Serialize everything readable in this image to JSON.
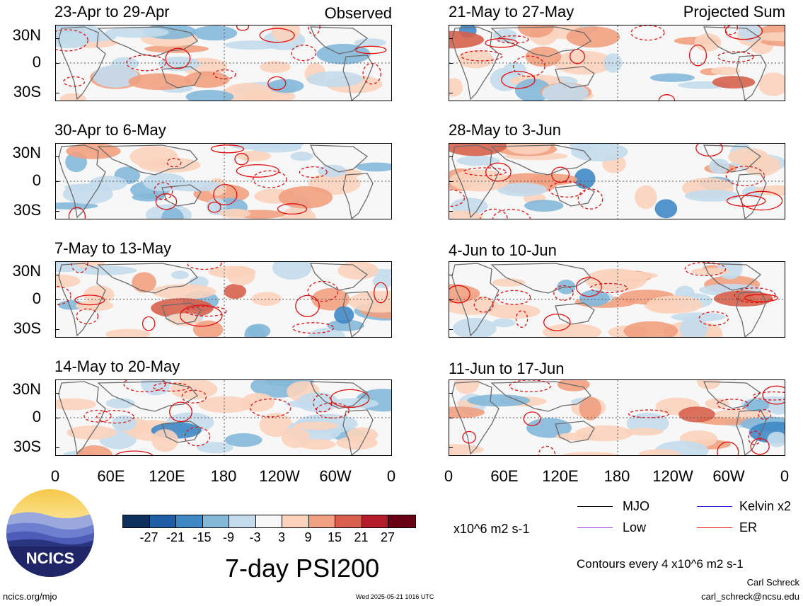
{
  "panels": [
    {
      "column": "observed",
      "period": "23-Apr to 29-Apr",
      "label": "Observed"
    },
    {
      "column": "observed",
      "period": "30-Apr to 6-May",
      "label": ""
    },
    {
      "column": "observed",
      "period": "7-May to 13-May",
      "label": ""
    },
    {
      "column": "observed",
      "period": "14-May to 20-May",
      "label": ""
    },
    {
      "column": "projected",
      "period": "21-May to 27-May",
      "label": "Projected Sum"
    },
    {
      "column": "projected",
      "period": "28-May to 3-Jun",
      "label": ""
    },
    {
      "column": "projected",
      "period": "4-Jun to 10-Jun",
      "label": ""
    },
    {
      "column": "projected",
      "period": "11-Jun to 17-Jun",
      "label": ""
    }
  ],
  "y_ticks": [
    "30N",
    "0",
    "30S"
  ],
  "x_ticks": [
    "0",
    "60E",
    "120E",
    "180",
    "120W",
    "60W",
    "0"
  ],
  "colorbar": {
    "ticks": [
      "-27",
      "-21",
      "-15",
      "-9",
      "-3",
      "3",
      "9",
      "15",
      "21",
      "27"
    ],
    "units": "x10^6 m2 s-1",
    "colors": [
      "#0d2f5c",
      "#1d5fa2",
      "#3f88c5",
      "#84b8d9",
      "#c3dbec",
      "#f7f7f7",
      "#fbd3bd",
      "#f1a07f",
      "#d6604d",
      "#b21c2b",
      "#6a0014"
    ]
  },
  "legend": {
    "items": [
      {
        "label": "MJO",
        "color": "#000000"
      },
      {
        "label": "Kelvin x2",
        "color": "#1f1fe0"
      },
      {
        "label": "Low",
        "color": "#a040e0"
      },
      {
        "label": "ER",
        "color": "#e01010"
      }
    ],
    "contour_note": "Contours every 4 x10^6 m2 s-1"
  },
  "title": "7-day PSI200",
  "logo_text": "NCICS",
  "footer": {
    "url": "ncics.org/mjo",
    "timestamp": "Wed 2025-05-21 1016 UTC",
    "author": "Carl Schreck",
    "email": "carl_schreck@ncsu.edu"
  }
}
